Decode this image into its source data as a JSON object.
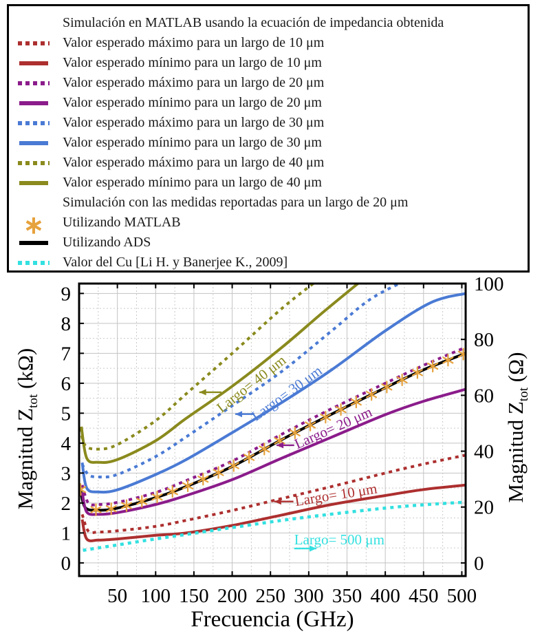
{
  "legend": {
    "header_matlab": "Simulación en MATLAB usando la ecuación de impedancia obtenida",
    "expected_entries": [
      {
        "id": "max-10um",
        "style": "dotted",
        "color": "#AD2F2F",
        "label": "Valor esperado máximo para un largo de 10 μm"
      },
      {
        "id": "min-10um",
        "style": "solid",
        "color": "#AD2F2F",
        "label": "Valor esperado mínimo para un largo de 10 μm"
      },
      {
        "id": "max-20um",
        "style": "dotted",
        "color": "#8B1C8B",
        "label": "Valor esperado máximo para un largo de 20 μm"
      },
      {
        "id": "min-20um",
        "style": "solid",
        "color": "#8B1C8B",
        "label": "Valor esperado mínimo para un largo de 20 μm"
      },
      {
        "id": "max-30um",
        "style": "dotted",
        "color": "#4A7AD4",
        "label": "Valor esperado máximo para un largo de 30 μm"
      },
      {
        "id": "min-30um",
        "style": "solid",
        "color": "#4A7AD4",
        "label": "Valor esperado mínimo para un largo de 30 μm"
      },
      {
        "id": "max-40um",
        "style": "dotted",
        "color": "#8A8A1E",
        "label": "Valor esperado máximo para un largo de 40 μm"
      },
      {
        "id": "min-40um",
        "style": "solid",
        "color": "#8A8A1E",
        "label": "Valor esperado mínimo para un largo de 40 μm"
      }
    ],
    "header_measured": "Simulación con las medidas reportadas para un largo de 20 μm",
    "measured_entries": [
      {
        "id": "matlab-asterisk",
        "style": "asterisk",
        "color": "#E6A23C",
        "label": "Utilizando MATLAB"
      },
      {
        "id": "ads",
        "style": "solid",
        "color": "#000000",
        "label": "Utilizando ADS"
      },
      {
        "id": "cu",
        "style": "dotted",
        "color": "#33E0E0",
        "label": "Valor del Cu [Li H. y Banerjee K., 2009]"
      }
    ]
  },
  "axes": {
    "xlabel": "Frecuencia (GHz)",
    "ylabel_left": {
      "pre": "Magnitud Z",
      "sub": "tot",
      "post": " (kΩ)"
    },
    "ylabel_right": {
      "pre": "Magnitud Z",
      "sub": "tot",
      "post": " (Ω)"
    }
  },
  "chart_data": {
    "type": "line",
    "title": "",
    "xlabel": "Frecuencia (GHz)",
    "ylabel_left": "Magnitud Z_tot (kΩ)",
    "ylabel_right": "Magnitud Z_tot (Ω)",
    "xlim": [
      0,
      505
    ],
    "ylim_left": [
      -0.44,
      9.33
    ],
    "ylim_right": [
      -4.7,
      100
    ],
    "xticks": [
      50,
      100,
      150,
      200,
      250,
      300,
      350,
      400,
      450,
      500
    ],
    "yticks_left": [
      0,
      1,
      2,
      3,
      4,
      5,
      6,
      7,
      8,
      9
    ],
    "yticks_right": [
      0,
      20,
      40,
      60,
      80,
      100
    ],
    "grid": {
      "major": true,
      "minor": true,
      "minor_x_step": 25,
      "minor_y_step": 0.5
    },
    "legend_position": "top-outside",
    "series": [
      {
        "id": "max-40um",
        "name": "Valor esperado máximo para un largo de 40 μm",
        "color": "#8A8A1E",
        "style": "dotted",
        "width": 4,
        "points": [
          [
            1.5,
            4.5
          ],
          [
            8,
            3.92
          ],
          [
            25,
            3.8
          ],
          [
            50,
            3.95
          ],
          [
            100,
            4.75
          ],
          [
            140,
            5.65
          ],
          [
            200,
            7.0
          ],
          [
            265,
            8.5
          ],
          [
            312,
            9.45
          ]
        ]
      },
      {
        "id": "min-40um",
        "name": "Valor esperado mínimo para un largo de 40 μm",
        "color": "#8A8A1E",
        "style": "solid",
        "width": 4,
        "points": [
          [
            3,
            4.55
          ],
          [
            10,
            3.5
          ],
          [
            25,
            3.36
          ],
          [
            50,
            3.45
          ],
          [
            100,
            4.08
          ],
          [
            140,
            4.83
          ],
          [
            200,
            5.9
          ],
          [
            265,
            7.2
          ],
          [
            320,
            8.4
          ],
          [
            370,
            9.45
          ]
        ]
      },
      {
        "id": "max-30um",
        "name": "Valor esperado máximo para un largo de 30 μm",
        "color": "#4A7AD4",
        "style": "dotted",
        "width": 4,
        "points": [
          [
            4,
            3.3
          ],
          [
            12,
            2.95
          ],
          [
            25,
            2.87
          ],
          [
            50,
            2.95
          ],
          [
            100,
            3.55
          ],
          [
            140,
            4.21
          ],
          [
            200,
            5.25
          ],
          [
            265,
            6.4
          ],
          [
            330,
            7.75
          ],
          [
            380,
            8.8
          ],
          [
            428,
            9.45
          ]
        ]
      },
      {
        "id": "min-30um",
        "name": "Valor esperado mínimo para un largo de 30 μm",
        "color": "#4A7AD4",
        "style": "solid",
        "width": 4,
        "points": [
          [
            4,
            3.35
          ],
          [
            10,
            2.5
          ],
          [
            25,
            2.37
          ],
          [
            50,
            2.44
          ],
          [
            100,
            2.95
          ],
          [
            140,
            3.45
          ],
          [
            200,
            4.35
          ],
          [
            265,
            5.36
          ],
          [
            330,
            6.45
          ],
          [
            400,
            7.75
          ],
          [
            460,
            8.7
          ],
          [
            505,
            9.0
          ]
        ]
      },
      {
        "id": "max-20um",
        "name": "Valor esperado máximo para un largo de 20 μm",
        "color": "#8B1C8B",
        "style": "dotted",
        "width": 4,
        "points": [
          [
            4,
            2.6
          ],
          [
            12,
            2.0
          ],
          [
            25,
            1.95
          ],
          [
            50,
            2.02
          ],
          [
            100,
            2.35
          ],
          [
            140,
            2.75
          ],
          [
            200,
            3.4
          ],
          [
            265,
            4.3
          ],
          [
            330,
            5.15
          ],
          [
            400,
            6.0
          ],
          [
            450,
            6.6
          ],
          [
            505,
            7.2
          ]
        ]
      },
      {
        "id": "ads",
        "name": "Utilizando ADS",
        "color": "#000000",
        "style": "solid",
        "width": 4,
        "points": [
          [
            2,
            2.45
          ],
          [
            8,
            1.85
          ],
          [
            25,
            1.76
          ],
          [
            50,
            1.83
          ],
          [
            100,
            2.18
          ],
          [
            140,
            2.55
          ],
          [
            200,
            3.22
          ],
          [
            265,
            4.12
          ],
          [
            330,
            4.97
          ],
          [
            400,
            5.85
          ],
          [
            450,
            6.45
          ],
          [
            505,
            7.0
          ]
        ]
      },
      {
        "id": "min-20um",
        "name": "Valor esperado mínimo para un largo de 20 μm",
        "color": "#8B1C8B",
        "style": "solid",
        "width": 4,
        "points": [
          [
            4,
            2.35
          ],
          [
            10,
            1.7
          ],
          [
            25,
            1.62
          ],
          [
            50,
            1.68
          ],
          [
            100,
            1.95
          ],
          [
            140,
            2.25
          ],
          [
            200,
            2.78
          ],
          [
            265,
            3.5
          ],
          [
            330,
            4.2
          ],
          [
            400,
            4.95
          ],
          [
            450,
            5.4
          ],
          [
            505,
            5.8
          ]
        ]
      },
      {
        "id": "max-10um",
        "name": "Valor esperado máximo para un largo de 10 μm",
        "color": "#AD2F2F",
        "style": "dotted",
        "width": 4,
        "points": [
          [
            4,
            1.62
          ],
          [
            12,
            1.06
          ],
          [
            25,
            1.03
          ],
          [
            50,
            1.07
          ],
          [
            100,
            1.22
          ],
          [
            140,
            1.42
          ],
          [
            200,
            1.75
          ],
          [
            265,
            2.15
          ],
          [
            330,
            2.55
          ],
          [
            400,
            3.0
          ],
          [
            450,
            3.3
          ],
          [
            505,
            3.6
          ]
        ]
      },
      {
        "id": "min-10um",
        "name": "Valor esperado mínimo para un largo de 10 μm",
        "color": "#AD2F2F",
        "style": "solid",
        "width": 4,
        "points": [
          [
            4,
            1.45
          ],
          [
            10,
            0.8
          ],
          [
            25,
            0.76
          ],
          [
            50,
            0.8
          ],
          [
            100,
            0.92
          ],
          [
            140,
            1.0
          ],
          [
            200,
            1.25
          ],
          [
            265,
            1.6
          ],
          [
            330,
            1.95
          ],
          [
            400,
            2.25
          ],
          [
            450,
            2.45
          ],
          [
            505,
            2.6
          ]
        ]
      },
      {
        "id": "cu",
        "name": "Valor del Cu [Li H. y Banerjee K., 2009]",
        "color": "#33E0E0",
        "style": "dotted",
        "width": 4.5,
        "points": [
          [
            5,
            0.42
          ],
          [
            50,
            0.6
          ],
          [
            100,
            0.8
          ],
          [
            140,
            0.95
          ],
          [
            200,
            1.18
          ],
          [
            265,
            1.42
          ],
          [
            330,
            1.63
          ],
          [
            400,
            1.83
          ],
          [
            450,
            1.94
          ],
          [
            505,
            2.03
          ]
        ]
      }
    ],
    "markers": {
      "id": "matlab-asterisk",
      "name": "Utilizando MATLAB",
      "shape": "asterisk",
      "color": "#E6A23C",
      "on_series": "ads",
      "f_start": 2,
      "f_step": 20,
      "f_end": 505
    },
    "annotations": [
      {
        "id": "largo-40um",
        "text": "Largo= 40 μm",
        "color": "#8A8A1E",
        "f": 186,
        "v": 5.0,
        "rot": -38,
        "arrow": {
          "from_f": 186,
          "from_v": 5.7,
          "to_f": 157,
          "to_v": 5.7
        }
      },
      {
        "id": "largo-30um",
        "text": "Largo= 30 μm",
        "color": "#4A7AD4",
        "f": 231,
        "v": 4.72,
        "rot": -36,
        "arrow": {
          "from_f": 229,
          "from_v": 4.97,
          "to_f": 204,
          "to_v": 4.97
        }
      },
      {
        "id": "largo-20um",
        "text": "Largo= 20 μm",
        "color": "#8B1C8B",
        "f": 285,
        "v": 3.8,
        "rot": -24,
        "arrow": {
          "from_f": 281,
          "from_v": 3.93,
          "to_f": 258,
          "to_v": 3.93
        }
      },
      {
        "id": "largo-10um",
        "text": "Largo= 10 μm",
        "color": "#AD2F2F",
        "f": 283,
        "v": 1.9,
        "rot": -9,
        "arrow": {
          "from_f": 280,
          "from_v": 2.05,
          "to_f": 255,
          "to_v": 2.05
        }
      },
      {
        "id": "largo-500um",
        "text": "Largo= 500 μm",
        "color": "#33E0E0",
        "f": 281,
        "v": 0.62,
        "rot": 0,
        "arrow": {
          "from_f": 281,
          "from_v": 0.48,
          "to_f": 310,
          "to_v": 0.48
        }
      }
    ]
  }
}
